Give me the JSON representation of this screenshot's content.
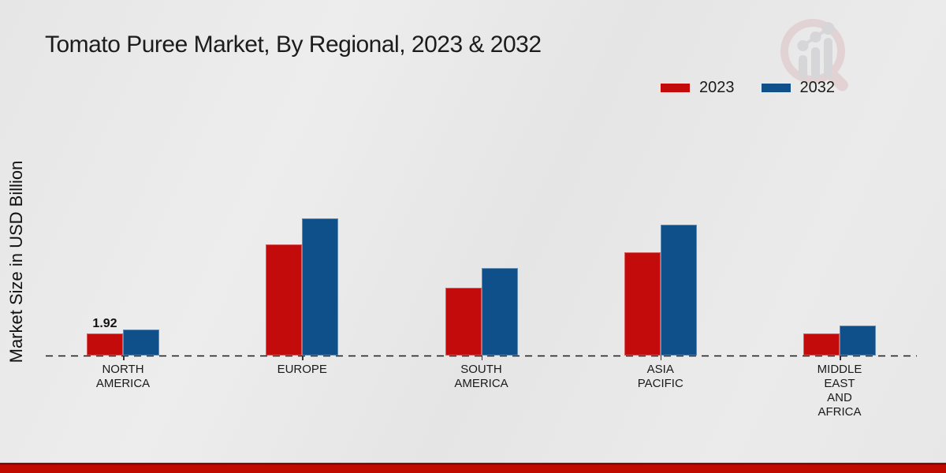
{
  "chart_data": {
    "type": "bar",
    "title": "Tomato Puree Market, By Regional, 2023 & 2032",
    "ylabel": "Market Size in USD Billion",
    "xlabel": "",
    "categories": [
      "NORTH AMERICA",
      "EUROPE",
      "SOUTH AMERICA",
      "ASIA PACIFIC",
      "MIDDLE EAST AND AFRICA"
    ],
    "categories_display": [
      "NORTH\nAMERICA",
      "EUROPE",
      "SOUTH\nAMERICA",
      "ASIA\nPACIFIC",
      "MIDDLE\nEAST\nAND\nAFRICA"
    ],
    "series": [
      {
        "name": "2023",
        "color": "#c20b0a",
        "values": [
          1.92,
          9.8,
          6.0,
          9.1,
          1.97
        ]
      },
      {
        "name": "2032",
        "color": "#0f4f8a",
        "values": [
          2.28,
          12.1,
          7.7,
          11.5,
          2.62
        ]
      }
    ],
    "annotations": [
      {
        "text": "1.92",
        "series_index": 0,
        "category_index": 0
      }
    ],
    "ylim": [
      0,
      13
    ],
    "grid": false,
    "legend_position": "top-right",
    "baseline_style": "dashed",
    "y_axis_ticks_visible": false
  },
  "watermark_icon": "magnifier-bar-chart-logo",
  "colors": {
    "series_2023": "#c20b0a",
    "series_2032": "#0f4f8a",
    "footer_band": "#c00b01",
    "footer_band_top": "#8f0a06",
    "background": "#e9e9e9",
    "text": "#1a1a1a"
  }
}
